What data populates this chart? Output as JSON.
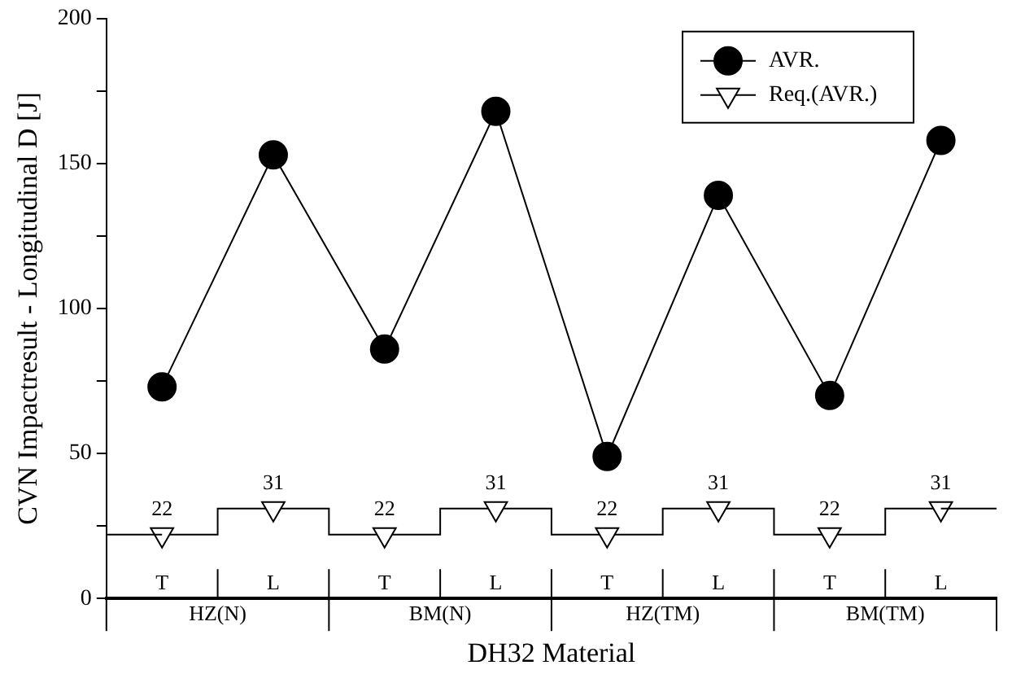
{
  "chart_data": {
    "type": "line",
    "xlabel": "DH32 Material",
    "ylabel": "CVN Impactresult - Longitudinal D [J]",
    "categories": [
      "T",
      "L",
      "T",
      "L",
      "T",
      "L",
      "T",
      "L"
    ],
    "annotations": [
      "HZ(N)",
      "BM(N)",
      "HZ(TM)",
      "BM(TM)"
    ],
    "series": [
      {
        "name": "AVR.",
        "color": "#000000",
        "marker": "circle",
        "values": [
          73,
          153,
          86,
          168,
          49,
          139,
          70,
          158
        ]
      },
      {
        "name": "Req.(AVR.)",
        "type": "step",
        "color": "#000000",
        "marker": "triangle",
        "values": [
          22,
          31,
          22,
          31,
          22,
          31,
          22,
          31
        ],
        "value_labels": [
          "22",
          "31",
          "22",
          "31",
          "22",
          "31",
          "22",
          "31"
        ]
      }
    ],
    "ylim": [
      0,
      200
    ],
    "yticks": [
      0,
      {
        "value": 25,
        "label": null
      },
      50,
      {
        "value": 75,
        "label": null
      },
      100,
      {
        "value": 125,
        "label": null
      },
      150,
      {
        "value": 175,
        "label": null
      },
      200
    ],
    "grid": false,
    "legend": "top right",
    "line_style": "solid"
  }
}
